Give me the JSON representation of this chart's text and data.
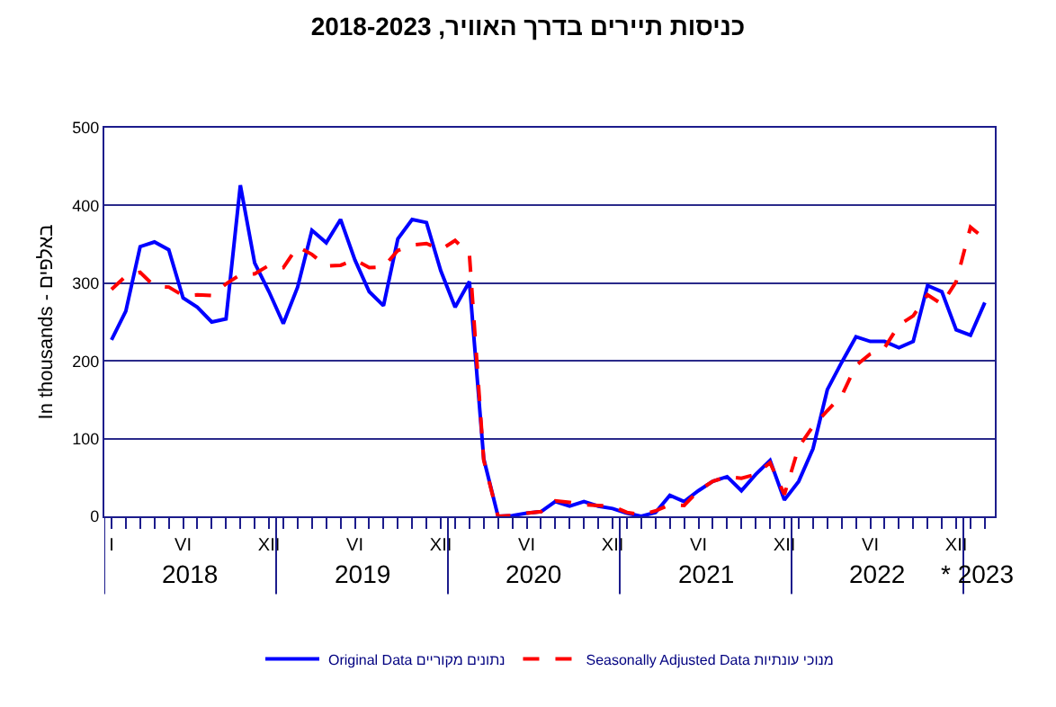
{
  "chart_data": {
    "type": "line",
    "title": "כניסות תיירים בדרך האוויר, 2018-2023",
    "ylabel": "In thousands - באלפים",
    "categories": [
      "I",
      null,
      null,
      null,
      null,
      "VI",
      null,
      null,
      null,
      null,
      null,
      "XII",
      null,
      null,
      null,
      null,
      null,
      "VI",
      null,
      null,
      null,
      null,
      null,
      "XII",
      null,
      null,
      null,
      null,
      null,
      "VI",
      null,
      null,
      null,
      null,
      null,
      "XII",
      null,
      null,
      null,
      null,
      null,
      "VI",
      null,
      null,
      null,
      null,
      null,
      "XII",
      null,
      null,
      null,
      null,
      null,
      "VI",
      null,
      null,
      null,
      null,
      null,
      "XII",
      null,
      null
    ],
    "series": [
      {
        "name": "Original Data נתונים מקוריים",
        "color": "#0000ff",
        "line_style": "solid",
        "values": [
          227,
          264,
          347,
          353,
          343,
          281,
          269,
          250,
          254,
          426,
          326,
          289,
          248,
          295,
          368,
          352,
          382,
          330,
          289,
          271,
          357,
          382,
          378,
          316,
          269,
          302,
          74,
          0,
          1,
          4,
          6,
          19,
          13,
          19,
          13,
          10,
          4,
          0,
          5,
          27,
          19,
          33,
          45,
          51,
          33,
          54,
          72,
          21,
          45,
          87,
          163,
          198,
          231,
          225,
          225,
          217,
          225,
          297,
          289,
          240,
          233,
          275
        ]
      },
      {
        "name": "Seasonally Adjusted Data מנוכי עונתיות",
        "color": "#ff0000",
        "line_style": "dashed",
        "values": [
          292,
          309,
          314,
          296,
          295,
          284,
          285,
          284,
          299,
          311,
          312,
          323,
          320,
          347,
          337,
          322,
          323,
          330,
          320,
          321,
          342,
          349,
          351,
          343,
          355,
          337,
          72,
          0,
          1,
          4,
          6,
          20,
          18,
          15,
          14,
          13,
          5,
          2,
          7,
          15,
          14,
          33,
          45,
          51,
          49,
          54,
          69,
          28,
          89,
          116,
          136,
          155,
          194,
          209,
          217,
          246,
          258,
          285,
          273,
          302,
          372,
          357
        ]
      }
    ],
    "annotations": [
      "2018",
      "2019",
      "2020",
      "2021",
      "2022",
      "* 2023"
    ],
    "ylim": [
      0,
      500
    ],
    "yticks": [
      0,
      100,
      200,
      300,
      400,
      500
    ],
    "grid": "y",
    "legend": "bottom",
    "marker": "none"
  }
}
